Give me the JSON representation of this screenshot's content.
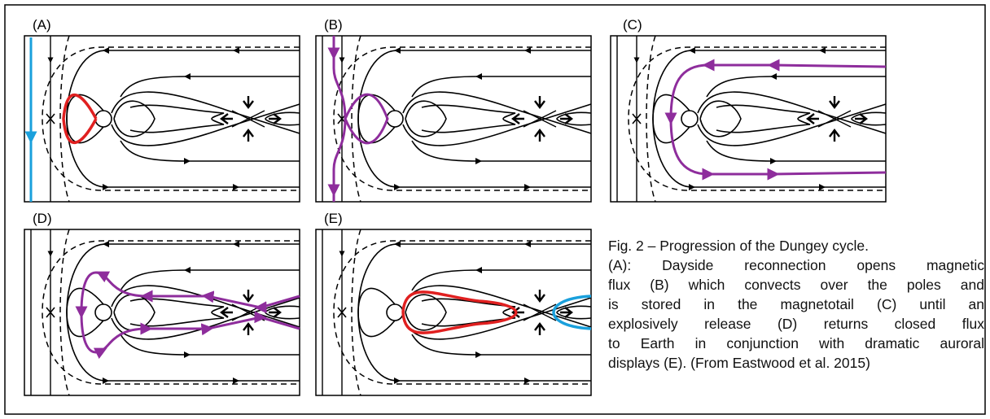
{
  "panels": [
    {
      "label": "(A)"
    },
    {
      "label": "(B)"
    },
    {
      "label": "(C)"
    },
    {
      "label": "(D)"
    },
    {
      "label": "(E)"
    }
  ],
  "caption": {
    "lines": [
      "Fig. 2 – Progression of the Dungey cycle.",
      "(A): Dayside reconnection opens magnetic",
      "flux (B) which convects over the poles and",
      "is stored in the magnetotail (C) until an",
      "explosively release (D) returns closed flux",
      "to Earth in conjunction with dramatic auroral",
      "displays (E). (From Eastwood et al. 2015)"
    ]
  }
}
